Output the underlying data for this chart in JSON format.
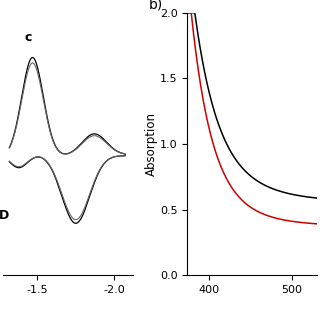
{
  "panel_a": {
    "label_c": "c",
    "label_D": "D",
    "xlim_left": -1.28,
    "xlim_right": -2.12,
    "xticks": [
      -1.5,
      -2.0
    ],
    "xticklabels": [
      "-1.5",
      "-2.0"
    ],
    "background": "#ffffff"
  },
  "panel_b": {
    "label": "b)",
    "ylabel": "Absorption",
    "xlim": [
      373,
      530
    ],
    "ylim": [
      0.0,
      2.0
    ],
    "xticks": [
      400,
      500
    ],
    "xticklabels": [
      "400",
      "500"
    ],
    "yticks": [
      0.0,
      0.5,
      1.0,
      1.5,
      2.0
    ],
    "yticklabels": [
      "0.0",
      "0.5",
      "1.0",
      "1.5",
      "2.0"
    ],
    "black_line_color": "#000000",
    "red_line_color": "#cc0000",
    "background": "#ffffff"
  }
}
